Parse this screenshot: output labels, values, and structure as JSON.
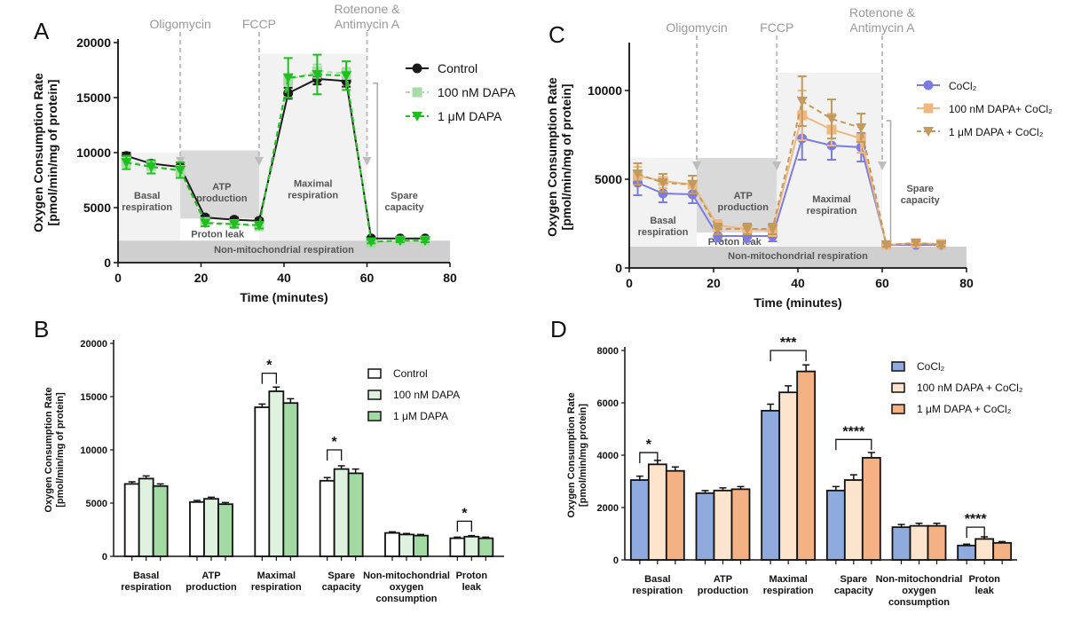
{
  "figure": {
    "panel_labels": [
      "A",
      "B",
      "C",
      "D"
    ]
  },
  "chart_data": [
    {
      "panel": "A",
      "type": "line",
      "xlabel": "Time (minutes)",
      "ylabel_lines": [
        "Oxygen Consumption Rate",
        "[pmol/min/mg of protein]"
      ],
      "xlim": [
        0,
        80
      ],
      "ylim": [
        0,
        20000
      ],
      "xticks": [
        0,
        20,
        40,
        60,
        80
      ],
      "yticks": [
        0,
        5000,
        10000,
        15000,
        20000
      ],
      "injections": [
        {
          "x": 15,
          "label": [
            "Oligomycin"
          ]
        },
        {
          "x": 34,
          "label": [
            "FCCP"
          ]
        },
        {
          "x": 60,
          "label": [
            "Rotenone &",
            "Antimycin  A"
          ]
        }
      ],
      "regions": [
        {
          "name": "basal",
          "x": [
            0,
            15
          ],
          "y": [
            2000,
            10000
          ],
          "fill": "#f2f2f2",
          "label": [
            "Basal",
            "respiration"
          ],
          "lx": 7,
          "ly": 5800
        },
        {
          "name": "atp",
          "x": [
            15,
            34
          ],
          "y": [
            4000,
            10200
          ],
          "fill": "#d9d9d9",
          "label": [
            "ATP",
            "production"
          ],
          "lx": 25,
          "ly": 6600
        },
        {
          "name": "proton",
          "x": [
            15,
            34
          ],
          "y": [
            2000,
            4000
          ],
          "fill": "#ffffff",
          "label": [
            "Proton leak"
          ],
          "lx": 24,
          "ly": 2300
        },
        {
          "name": "maximal",
          "x": [
            34,
            60
          ],
          "y": [
            2000,
            19000
          ],
          "fill": "#f2f2f2",
          "label": [
            "Maximal",
            "respiration"
          ],
          "lx": 47,
          "ly": 6900
        },
        {
          "name": "nonmito",
          "x": [
            0,
            80
          ],
          "y": [
            0,
            2000
          ],
          "fill": "#cfcfcf",
          "label": [
            "Non-mitochondrial respiration"
          ],
          "lx": 40,
          "ly": 900
        }
      ],
      "spare": {
        "x": 62.5,
        "y": [
          1900,
          16300
        ],
        "label": [
          "Spare",
          "capacity"
        ],
        "lx": 69,
        "ly": 5800
      },
      "x": [
        2,
        8,
        15,
        21,
        28,
        34,
        41,
        48,
        55,
        61,
        68,
        74
      ],
      "series": [
        {
          "name": "Control",
          "values": [
            9700,
            9000,
            8700,
            4100,
            3900,
            3800,
            15400,
            16700,
            16500,
            2200,
            2200,
            2200
          ],
          "errors": [
            300,
            300,
            400,
            200,
            200,
            200,
            500,
            500,
            500,
            100,
            100,
            100
          ],
          "color": "#1a1a1a",
          "marker": "circle",
          "dash": false,
          "width": 2
        },
        {
          "name": "100 nM DAPA",
          "values": [
            9200,
            8800,
            8300,
            3700,
            3500,
            3300,
            16600,
            17400,
            17200,
            1800,
            2000,
            2000
          ],
          "errors": [
            500,
            400,
            500,
            300,
            300,
            300,
            500,
            600,
            500,
            100,
            100,
            100
          ],
          "color": "#a9dba9",
          "marker": "square",
          "dash": true,
          "width": 2
        },
        {
          "name": "1 μM DAPA",
          "values": [
            9100,
            8700,
            8400,
            3600,
            3500,
            3400,
            16800,
            17100,
            17000,
            1900,
            2000,
            2000
          ],
          "errors": [
            600,
            600,
            700,
            300,
            300,
            300,
            1800,
            1800,
            1300,
            150,
            150,
            150
          ],
          "color": "#1fbf1f",
          "marker": "triangle",
          "dash": true,
          "width": 2
        }
      ],
      "legend": [
        "Control",
        "100 nM DAPA",
        "1 μM DAPA"
      ]
    },
    {
      "panel": "B",
      "type": "bar",
      "ylabel_lines": [
        "Oxygen Consumption Rate",
        "[pmol/min/mg of protein]"
      ],
      "ylim": [
        0,
        20000
      ],
      "yticks": [
        0,
        5000,
        10000,
        15000,
        20000
      ],
      "categories": [
        [
          "Basal",
          "respiration"
        ],
        [
          "ATP",
          "production"
        ],
        [
          "Maximal",
          "respiration"
        ],
        [
          "Spare",
          "capacity"
        ],
        [
          "Non-mitochondrial",
          "oxygen",
          "consumption"
        ],
        [
          "Proton",
          "leak"
        ]
      ],
      "series": [
        {
          "name": "Control",
          "values": [
            6800,
            5100,
            14000,
            7100,
            2200,
            1700
          ],
          "errors": [
            200,
            150,
            300,
            300,
            100,
            100
          ],
          "color": "#ffffff"
        },
        {
          "name": "100 nM DAPA",
          "values": [
            7300,
            5400,
            15500,
            8200,
            2050,
            1850
          ],
          "errors": [
            250,
            150,
            400,
            300,
            100,
            100
          ],
          "color": "#dff2df"
        },
        {
          "name": "1 μM DAPA",
          "values": [
            6600,
            4900,
            14400,
            7800,
            1950,
            1700
          ],
          "errors": [
            200,
            150,
            400,
            400,
            100,
            100
          ],
          "color": "#a3d9a3"
        }
      ],
      "legend": [
        "Control",
        "100 nM DAPA",
        "1 μM DAPA"
      ],
      "significance": [
        {
          "category": 2,
          "from": 0,
          "to": 1,
          "label": "*",
          "y": 17200
        },
        {
          "category": 3,
          "from": 0,
          "to": 1,
          "label": "*",
          "y": 10000
        },
        {
          "category": 5,
          "from": 0,
          "to": 1,
          "label": "*",
          "y": 3300
        }
      ]
    },
    {
      "panel": "C",
      "type": "line",
      "xlabel": "Time (minutes)",
      "ylabel_lines": [
        "Oxygen Consumption Rate",
        "[pmol/min/mg of protein]"
      ],
      "xlim": [
        0,
        80
      ],
      "ylim": [
        0,
        12500
      ],
      "xticks": [
        0,
        20,
        40,
        60,
        80
      ],
      "yticks": [
        0,
        5000,
        10000
      ],
      "injections": [
        {
          "x": 16,
          "label": [
            "Oligomycin"
          ]
        },
        {
          "x": 35,
          "label": [
            "FCCP"
          ]
        },
        {
          "x": 60,
          "label": [
            "Rotenone &",
            "Antimycin  A"
          ]
        }
      ],
      "regions": [
        {
          "name": "basal",
          "x": [
            0,
            16
          ],
          "y": [
            1200,
            6200
          ],
          "fill": "#f2f2f2",
          "label": [
            "Basal",
            "respiration"
          ],
          "lx": 8,
          "ly": 2500
        },
        {
          "name": "atp",
          "x": [
            16,
            35
          ],
          "y": [
            2000,
            6200
          ],
          "fill": "#d9d9d9",
          "label": [
            "ATP",
            "production"
          ],
          "lx": 27,
          "ly": 3900
        },
        {
          "name": "proton",
          "x": [
            16,
            35
          ],
          "y": [
            1200,
            2000
          ],
          "fill": "#ffffff",
          "label": [
            "Proton leak"
          ],
          "lx": 25,
          "ly": 1300
        },
        {
          "name": "maximal",
          "x": [
            35,
            60
          ],
          "y": [
            1200,
            11000
          ],
          "fill": "#f2f2f2",
          "label": [
            "Maximal",
            "respiration"
          ],
          "lx": 48,
          "ly": 3700
        },
        {
          "name": "nonmito",
          "x": [
            0,
            80
          ],
          "y": [
            0,
            1200
          ],
          "fill": "#cfcfcf",
          "label": [
            "Non-mitochondrial respiration"
          ],
          "lx": 40,
          "ly": 500
        }
      ],
      "spare": {
        "x": 62,
        "y": [
          1400,
          8300
        ],
        "label": [
          "Spare",
          "capacity"
        ],
        "lx": 69,
        "ly": 4300
      },
      "x": [
        2,
        8,
        15,
        21,
        28,
        34,
        41,
        48,
        55,
        61,
        68,
        74
      ],
      "series": [
        {
          "name": "CoCl₂",
          "values": [
            4800,
            4200,
            4150,
            1800,
            1800,
            1800,
            7300,
            6900,
            6800,
            1300,
            1300,
            1300
          ],
          "errors": [
            700,
            500,
            500,
            300,
            300,
            300,
            1200,
            800,
            800,
            100,
            100,
            100
          ],
          "color": "#7c7ce0",
          "marker": "circle",
          "dash": false,
          "width": 2
        },
        {
          "name": "100 nM DAPA+ CoCl₂",
          "values": [
            5200,
            4900,
            4700,
            2400,
            2200,
            2100,
            8600,
            7800,
            7300,
            1300,
            1400,
            1350
          ],
          "errors": [
            500,
            400,
            500,
            300,
            300,
            300,
            1400,
            900,
            800,
            100,
            100,
            100
          ],
          "color": "#f0b77f",
          "marker": "square",
          "dash": false,
          "width": 2
        },
        {
          "name": "1 μM DAPA + CoCl₂",
          "values": [
            5300,
            4800,
            4700,
            2200,
            2200,
            2200,
            9400,
            8400,
            7900,
            1300,
            1400,
            1300
          ],
          "errors": [
            600,
            500,
            500,
            300,
            300,
            300,
            1400,
            1100,
            800,
            100,
            100,
            100
          ],
          "color": "#c49a5c",
          "marker": "triangle",
          "dash": true,
          "width": 2
        }
      ],
      "legend": [
        "CoCl₂",
        "100 nM DAPA+ CoCl₂",
        "1 μM DAPA + CoCl₂"
      ]
    },
    {
      "panel": "D",
      "type": "bar",
      "ylabel_lines": [
        "Oxygen Consumption Rate",
        "[pmol/min/mg protein]"
      ],
      "ylim": [
        0,
        8000
      ],
      "yticks": [
        0,
        2000,
        4000,
        6000,
        8000
      ],
      "categories": [
        [
          "Basal",
          "respiration"
        ],
        [
          "ATP",
          "production"
        ],
        [
          "Maximal",
          "respiration"
        ],
        [
          "Spare",
          "capacity"
        ],
        [
          "Non-mitochondrial",
          "oxygen",
          "consumption"
        ],
        [
          "Proton",
          "leak"
        ]
      ],
      "series": [
        {
          "name": "CoCl₂",
          "values": [
            3050,
            2550,
            5700,
            2650,
            1250,
            550
          ],
          "errors": [
            150,
            100,
            250,
            150,
            100,
            50
          ],
          "color": "#8faadc"
        },
        {
          "name": "100 nM DAPA + CoCl₂",
          "values": [
            3650,
            2650,
            6400,
            3050,
            1300,
            800
          ],
          "errors": [
            150,
            100,
            250,
            200,
            100,
            80
          ],
          "color": "#fde4cc"
        },
        {
          "name": "1 μM DAPA + CoCl₂",
          "values": [
            3400,
            2700,
            7200,
            3900,
            1300,
            650
          ],
          "errors": [
            150,
            100,
            250,
            200,
            100,
            50
          ],
          "color": "#f4b183"
        }
      ],
      "legend": [
        "CoCl₂",
        "100 nM DAPA + CoCl₂",
        "1 μM DAPA + CoCl₂"
      ],
      "significance": [
        {
          "category": 0,
          "from": 0,
          "to": 1,
          "label": "*",
          "y": 4100
        },
        {
          "category": 2,
          "from": 0,
          "to": 2,
          "label": "***",
          "y": 8000
        },
        {
          "category": 3,
          "from": 0,
          "to": 2,
          "label": "****",
          "y": 4600
        },
        {
          "category": 5,
          "from": 0,
          "to": 1,
          "label": "****",
          "y": 1250
        }
      ]
    }
  ]
}
